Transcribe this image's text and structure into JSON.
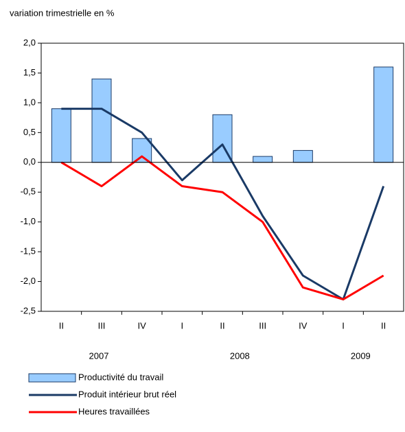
{
  "chart_data": {
    "type": "bar",
    "title": "variation trimestrielle en %",
    "categories": [
      "II",
      "III",
      "IV",
      "I",
      "II",
      "III",
      "IV",
      "I",
      "II"
    ],
    "year_labels": [
      "2007",
      "2008",
      "2009"
    ],
    "series": [
      {
        "name": "Productivité du travail",
        "type": "bar",
        "color": "#99ccff",
        "values": [
          0.9,
          1.4,
          0.4,
          0,
          0.8,
          0.1,
          0.2,
          0,
          1.6
        ]
      },
      {
        "name": "Produit intérieur brut réel",
        "type": "line",
        "color": "#1a3a66",
        "values": [
          0.9,
          0.9,
          0.5,
          -0.3,
          0.3,
          -0.9,
          -1.9,
          -2.3,
          -0.4
        ]
      },
      {
        "name": "Heures travaillées",
        "type": "line",
        "color": "#ff0000",
        "values": [
          0.0,
          -0.4,
          0.1,
          -0.4,
          -0.5,
          -1.0,
          -2.1,
          -2.3,
          -1.9
        ]
      }
    ],
    "ylim": [
      -2.5,
      2.0
    ],
    "yticks": [
      {
        "value": 2.0,
        "label": "2,0"
      },
      {
        "value": 1.5,
        "label": "1,5"
      },
      {
        "value": 1.0,
        "label": "1,0"
      },
      {
        "value": 0.5,
        "label": "0,5"
      },
      {
        "value": 0.0,
        "label": "0,0"
      },
      {
        "value": -0.5,
        "label": "-0,5"
      },
      {
        "value": -1.0,
        "label": "-1,0"
      },
      {
        "value": -1.5,
        "label": "-1,5"
      },
      {
        "value": -2.0,
        "label": "-2,0"
      },
      {
        "value": -2.5,
        "label": "-2,5"
      }
    ],
    "grid": false
  }
}
